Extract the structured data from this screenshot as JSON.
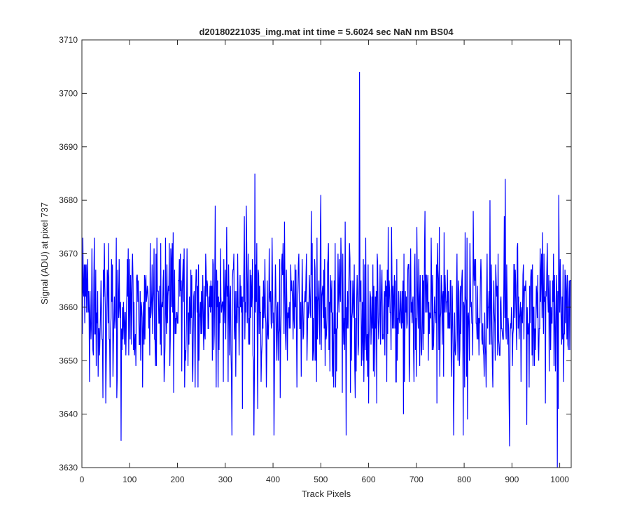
{
  "chart_data": {
    "type": "line",
    "title": "d20180221035_img.mat int time = 5.6024 sec  NaN nm BS04",
    "xlabel": "Track Pixels",
    "ylabel": "Signal (ADU) at pixel 737",
    "xlim": [
      0,
      1024
    ],
    "ylim": [
      3630,
      3710
    ],
    "xticks": [
      "0",
      "100",
      "200",
      "300",
      "400",
      "500",
      "600",
      "700",
      "800",
      "900",
      "1000"
    ],
    "yticks": [
      "3630",
      "3640",
      "3650",
      "3660",
      "3670",
      "3680",
      "3690",
      "3700",
      "3710"
    ],
    "grid": false,
    "legend": "none",
    "line_color": "#0000ff",
    "series": [
      {
        "x_start": 1,
        "x_step": 1,
        "noise_mean": 3660,
        "noise_std": 7.5,
        "spikes": [
          {
            "x": 362,
            "y": 3685
          },
          {
            "x": 581,
            "y": 3704
          },
          {
            "x": 886,
            "y": 3684
          },
          {
            "x": 360,
            "y": 3636
          },
          {
            "x": 778,
            "y": 3636
          },
          {
            "x": 995,
            "y": 3630
          }
        ]
      }
    ]
  }
}
